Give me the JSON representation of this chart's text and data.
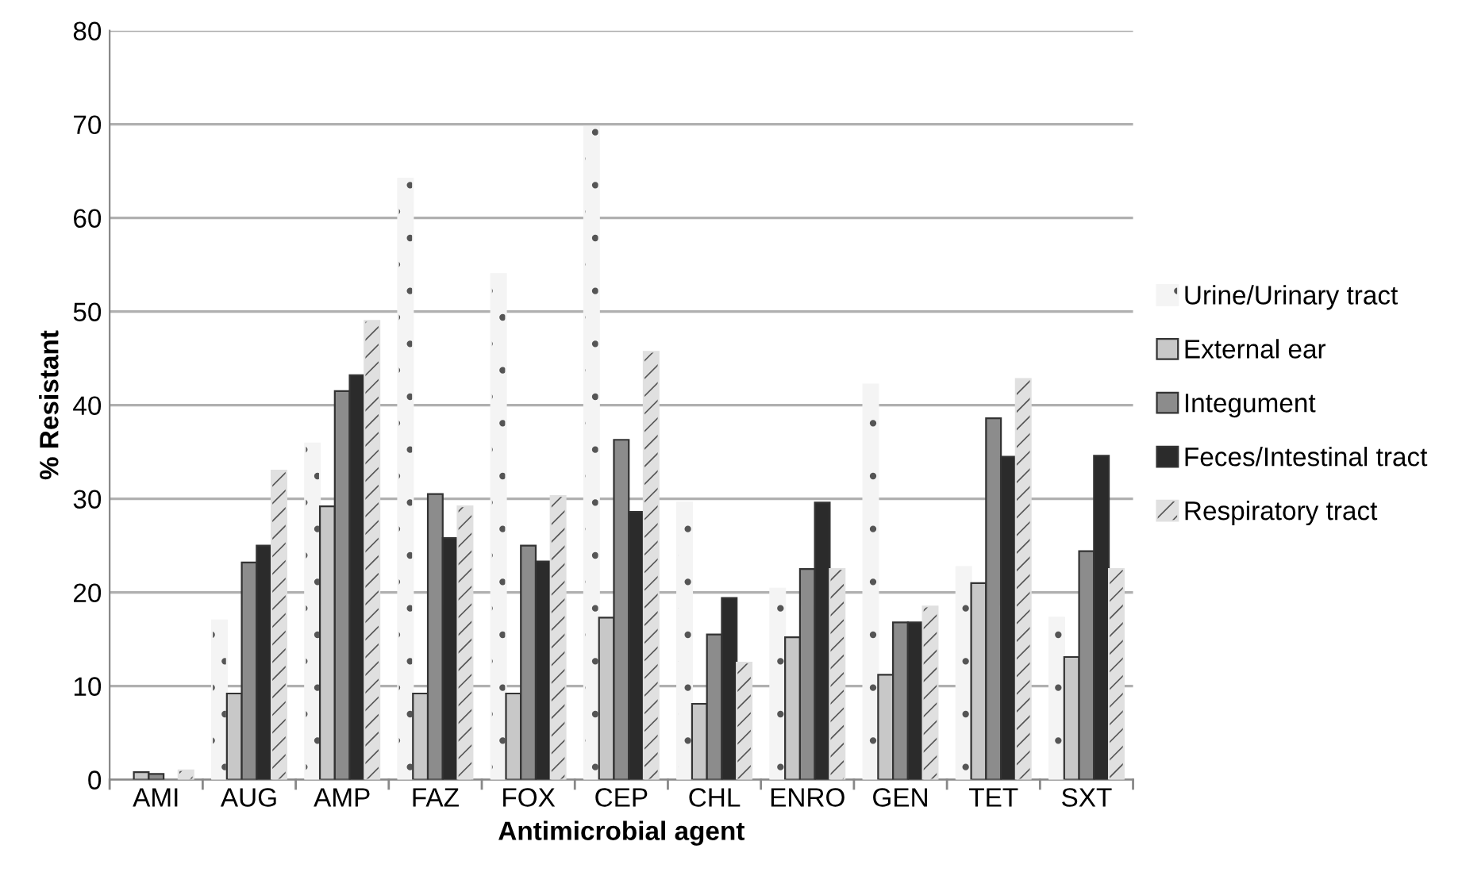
{
  "chart_data": {
    "type": "bar",
    "xlabel": "Antimicrobial agent",
    "ylabel": "% Resistant",
    "categories": [
      "AMI",
      "AUG",
      "AMP",
      "FAZ",
      "FOX",
      "CEP",
      "CHL",
      "ENRO",
      "GEN",
      "TET",
      "SXT"
    ],
    "series": [
      {
        "name": "Urine/Urinary tract",
        "color": "#f4f4f4",
        "values": [
          null,
          17,
          35.9,
          64.2,
          54,
          69.7,
          29.6,
          20.4,
          42.2,
          22.7,
          17.3
        ]
      },
      {
        "name": "External ear",
        "color": "#c8c8c8",
        "values": [
          0.8,
          9.2,
          29.2,
          9.2,
          9.2,
          17.3,
          8.1,
          15.2,
          11.2,
          21,
          13.1
        ]
      },
      {
        "name": "Integument",
        "color": "#8c8c8c",
        "values": [
          0.6,
          23.2,
          41.5,
          30.5,
          25,
          36.3,
          15.5,
          22.5,
          16.8,
          38.6,
          24.4
        ]
      },
      {
        "name": "Feces/Intestinal tract",
        "color": "#2b2b2b",
        "values": [
          null,
          25,
          43.2,
          25.8,
          23.3,
          28.6,
          19.4,
          29.6,
          16.8,
          34.5,
          34.6
        ]
      },
      {
        "name": "Respiratory tract",
        "color": "#e0e0e0",
        "values": [
          1.0,
          33,
          49,
          29.2,
          30.3,
          45.7,
          12.5,
          22.5,
          18.5,
          42.8,
          22.5
        ]
      }
    ],
    "ylim": [
      0,
      80
    ],
    "yticks": [
      0,
      10,
      20,
      30,
      40,
      50,
      60,
      70,
      80
    ],
    "grid": "y",
    "legend": "right"
  }
}
